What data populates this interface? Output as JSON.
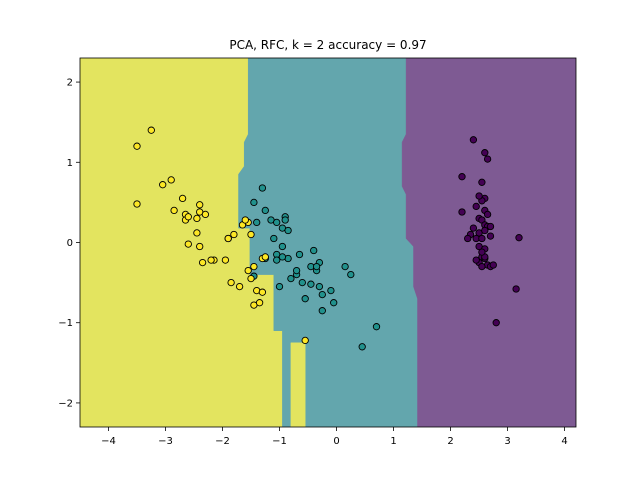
{
  "chart_data": {
    "type": "scatter",
    "title": "PCA, RFC, k = 2 accuracy = 0.97",
    "xlabel": "",
    "ylabel": "",
    "xlim": [
      -4.5,
      4.2
    ],
    "ylim": [
      -2.3,
      2.3
    ],
    "x_ticks": [
      -4,
      -3,
      -2,
      -1,
      0,
      1,
      2,
      3,
      4
    ],
    "y_ticks": [
      -2,
      -1,
      0,
      1,
      2
    ],
    "x_tick_labels": [
      "−4",
      "−3",
      "−2",
      "−1",
      "0",
      "1",
      "2",
      "3",
      "4"
    ],
    "y_tick_labels": [
      "−2",
      "−1",
      "0",
      "1",
      "2"
    ],
    "grid": false,
    "region_colors": {
      "class0": "#7e5a93",
      "class1": "#63a6ad",
      "class2": "#e3e45f"
    },
    "point_colors": {
      "class0": "#440154",
      "class1": "#21918c",
      "class2": "#fde725"
    },
    "decision_regions": [
      {
        "class": "class2",
        "polygon": [
          [
            -4.5,
            2.3
          ],
          [
            -1.55,
            2.3
          ],
          [
            -1.55,
            1.35
          ],
          [
            -1.62,
            1.25
          ],
          [
            -1.62,
            0.95
          ],
          [
            -1.72,
            0.85
          ],
          [
            -1.72,
            0.18
          ],
          [
            -1.52,
            0.18
          ],
          [
            -1.52,
            -0.4
          ],
          [
            -1.1,
            -0.4
          ],
          [
            -1.1,
            -1.1
          ],
          [
            -0.95,
            -1.1
          ],
          [
            -0.95,
            -2.3
          ],
          [
            -4.5,
            -2.3
          ]
        ]
      },
      {
        "class": "class1",
        "polygon": [
          [
            -1.55,
            2.3
          ],
          [
            1.22,
            2.3
          ],
          [
            1.22,
            1.35
          ],
          [
            1.15,
            1.25
          ],
          [
            1.15,
            0.7
          ],
          [
            1.22,
            0.6
          ],
          [
            1.22,
            0.05
          ],
          [
            1.35,
            -0.05
          ],
          [
            1.35,
            -0.55
          ],
          [
            1.42,
            -0.7
          ],
          [
            1.42,
            -2.3
          ],
          [
            -0.55,
            -2.3
          ],
          [
            -0.55,
            -1.25
          ],
          [
            -0.8,
            -1.25
          ],
          [
            -0.8,
            -2.3
          ],
          [
            -0.95,
            -2.3
          ],
          [
            -0.95,
            -1.1
          ],
          [
            -1.1,
            -1.1
          ],
          [
            -1.1,
            -0.4
          ],
          [
            -1.52,
            -0.4
          ],
          [
            -1.52,
            0.18
          ],
          [
            -1.72,
            0.18
          ],
          [
            -1.72,
            0.85
          ],
          [
            -1.62,
            0.95
          ],
          [
            -1.62,
            1.25
          ],
          [
            -1.55,
            1.35
          ]
        ]
      },
      {
        "class": "class2",
        "polygon": [
          [
            -0.8,
            -1.25
          ],
          [
            -0.55,
            -1.25
          ],
          [
            -0.55,
            -2.3
          ],
          [
            -0.8,
            -2.3
          ]
        ]
      },
      {
        "class": "class0",
        "polygon": [
          [
            1.22,
            2.3
          ],
          [
            4.2,
            2.3
          ],
          [
            4.2,
            -2.3
          ],
          [
            1.42,
            -2.3
          ],
          [
            1.42,
            -0.7
          ],
          [
            1.35,
            -0.55
          ],
          [
            1.35,
            -0.05
          ],
          [
            1.22,
            0.05
          ],
          [
            1.22,
            0.6
          ],
          [
            1.15,
            0.7
          ],
          [
            1.15,
            1.25
          ],
          [
            1.22,
            1.35
          ]
        ]
      }
    ],
    "series": [
      {
        "class": "class0",
        "x": [
          2.4,
          2.2,
          2.6,
          2.65,
          2.55,
          2.6,
          2.45,
          2.55,
          2.6,
          2.2,
          2.5,
          2.55,
          2.6,
          2.4,
          2.5,
          2.65,
          2.7,
          2.45,
          2.55,
          2.35,
          2.5,
          2.3,
          2.6,
          2.7,
          3.2,
          2.55,
          2.6,
          2.5,
          2.65,
          2.45,
          2.55,
          2.6,
          2.7,
          2.75,
          3.15,
          2.8,
          2.5,
          2.55,
          2.65,
          2.6
        ],
        "y": [
          1.28,
          0.82,
          1.12,
          1.04,
          0.75,
          0.55,
          0.45,
          0.52,
          0.4,
          0.38,
          0.3,
          0.28,
          0.22,
          0.18,
          0.12,
          0.2,
          0.2,
          0.05,
          0.05,
          0.1,
          -0.05,
          0.05,
          -0.08,
          0.08,
          0.06,
          -0.18,
          -0.2,
          -0.25,
          -0.28,
          -0.22,
          -0.3,
          -0.18,
          -0.3,
          -0.28,
          -0.58,
          -1.0,
          0.58,
          -0.12,
          0.35,
          0.15
        ]
      },
      {
        "class": "class1",
        "x": [
          -1.3,
          -1.45,
          -1.25,
          -1.15,
          -0.9,
          -1.05,
          -0.95,
          -0.9,
          -0.85,
          -1.4,
          -1.1,
          -0.95,
          -1.05,
          -0.85,
          -0.7,
          -0.95,
          -1.05,
          -1.25,
          -0.8,
          -0.4,
          -0.65,
          -0.3,
          -0.35,
          -0.7,
          -0.6,
          -0.45,
          -0.35,
          -0.55,
          -0.3,
          -0.25,
          -0.1,
          -0.05,
          -0.25,
          0.15,
          0.25,
          -1.0,
          -0.45,
          0.7,
          0.45,
          -1.45
        ],
        "y": [
          0.68,
          0.5,
          0.4,
          0.28,
          0.32,
          0.25,
          0.18,
          0.28,
          0.15,
          0.25,
          0.05,
          -0.05,
          -0.15,
          -0.2,
          -0.4,
          -0.18,
          -0.22,
          -0.2,
          -0.45,
          -0.1,
          -0.15,
          -0.25,
          -0.35,
          -0.35,
          -0.5,
          -0.3,
          -0.3,
          -0.7,
          -0.55,
          -0.65,
          -0.6,
          -0.75,
          -0.85,
          -0.3,
          -0.4,
          -0.55,
          -0.52,
          -1.05,
          -1.3,
          -0.42
        ]
      },
      {
        "class": "class2",
        "x": [
          -3.25,
          -3.5,
          -3.05,
          -2.9,
          -3.5,
          -2.85,
          -2.7,
          -2.65,
          -2.4,
          -2.4,
          -2.3,
          -2.45,
          -2.65,
          -2.45,
          -2.6,
          -2.4,
          -2.15,
          -1.9,
          -1.8,
          -1.65,
          -1.95,
          -2.2,
          -2.35,
          -1.9,
          -1.85,
          -1.55,
          -1.45,
          -1.5,
          -1.3,
          -1.25,
          -1.7,
          -1.4,
          -1.45,
          -1.35,
          -1.55,
          -1.5,
          -1.3,
          -0.55,
          -1.6,
          -2.6
        ],
        "y": [
          1.4,
          1.2,
          0.72,
          0.78,
          0.48,
          0.4,
          0.55,
          0.35,
          0.47,
          0.38,
          0.35,
          0.3,
          0.28,
          0.12,
          -0.02,
          -0.05,
          -0.22,
          0.05,
          0.1,
          0.22,
          -0.22,
          -0.22,
          -0.25,
          0.05,
          -0.5,
          -0.35,
          -0.3,
          -0.45,
          -0.2,
          -0.18,
          -0.55,
          -0.6,
          -0.78,
          -0.75,
          0.25,
          0.1,
          -0.62,
          -1.22,
          0.28,
          0.32
        ]
      }
    ]
  }
}
